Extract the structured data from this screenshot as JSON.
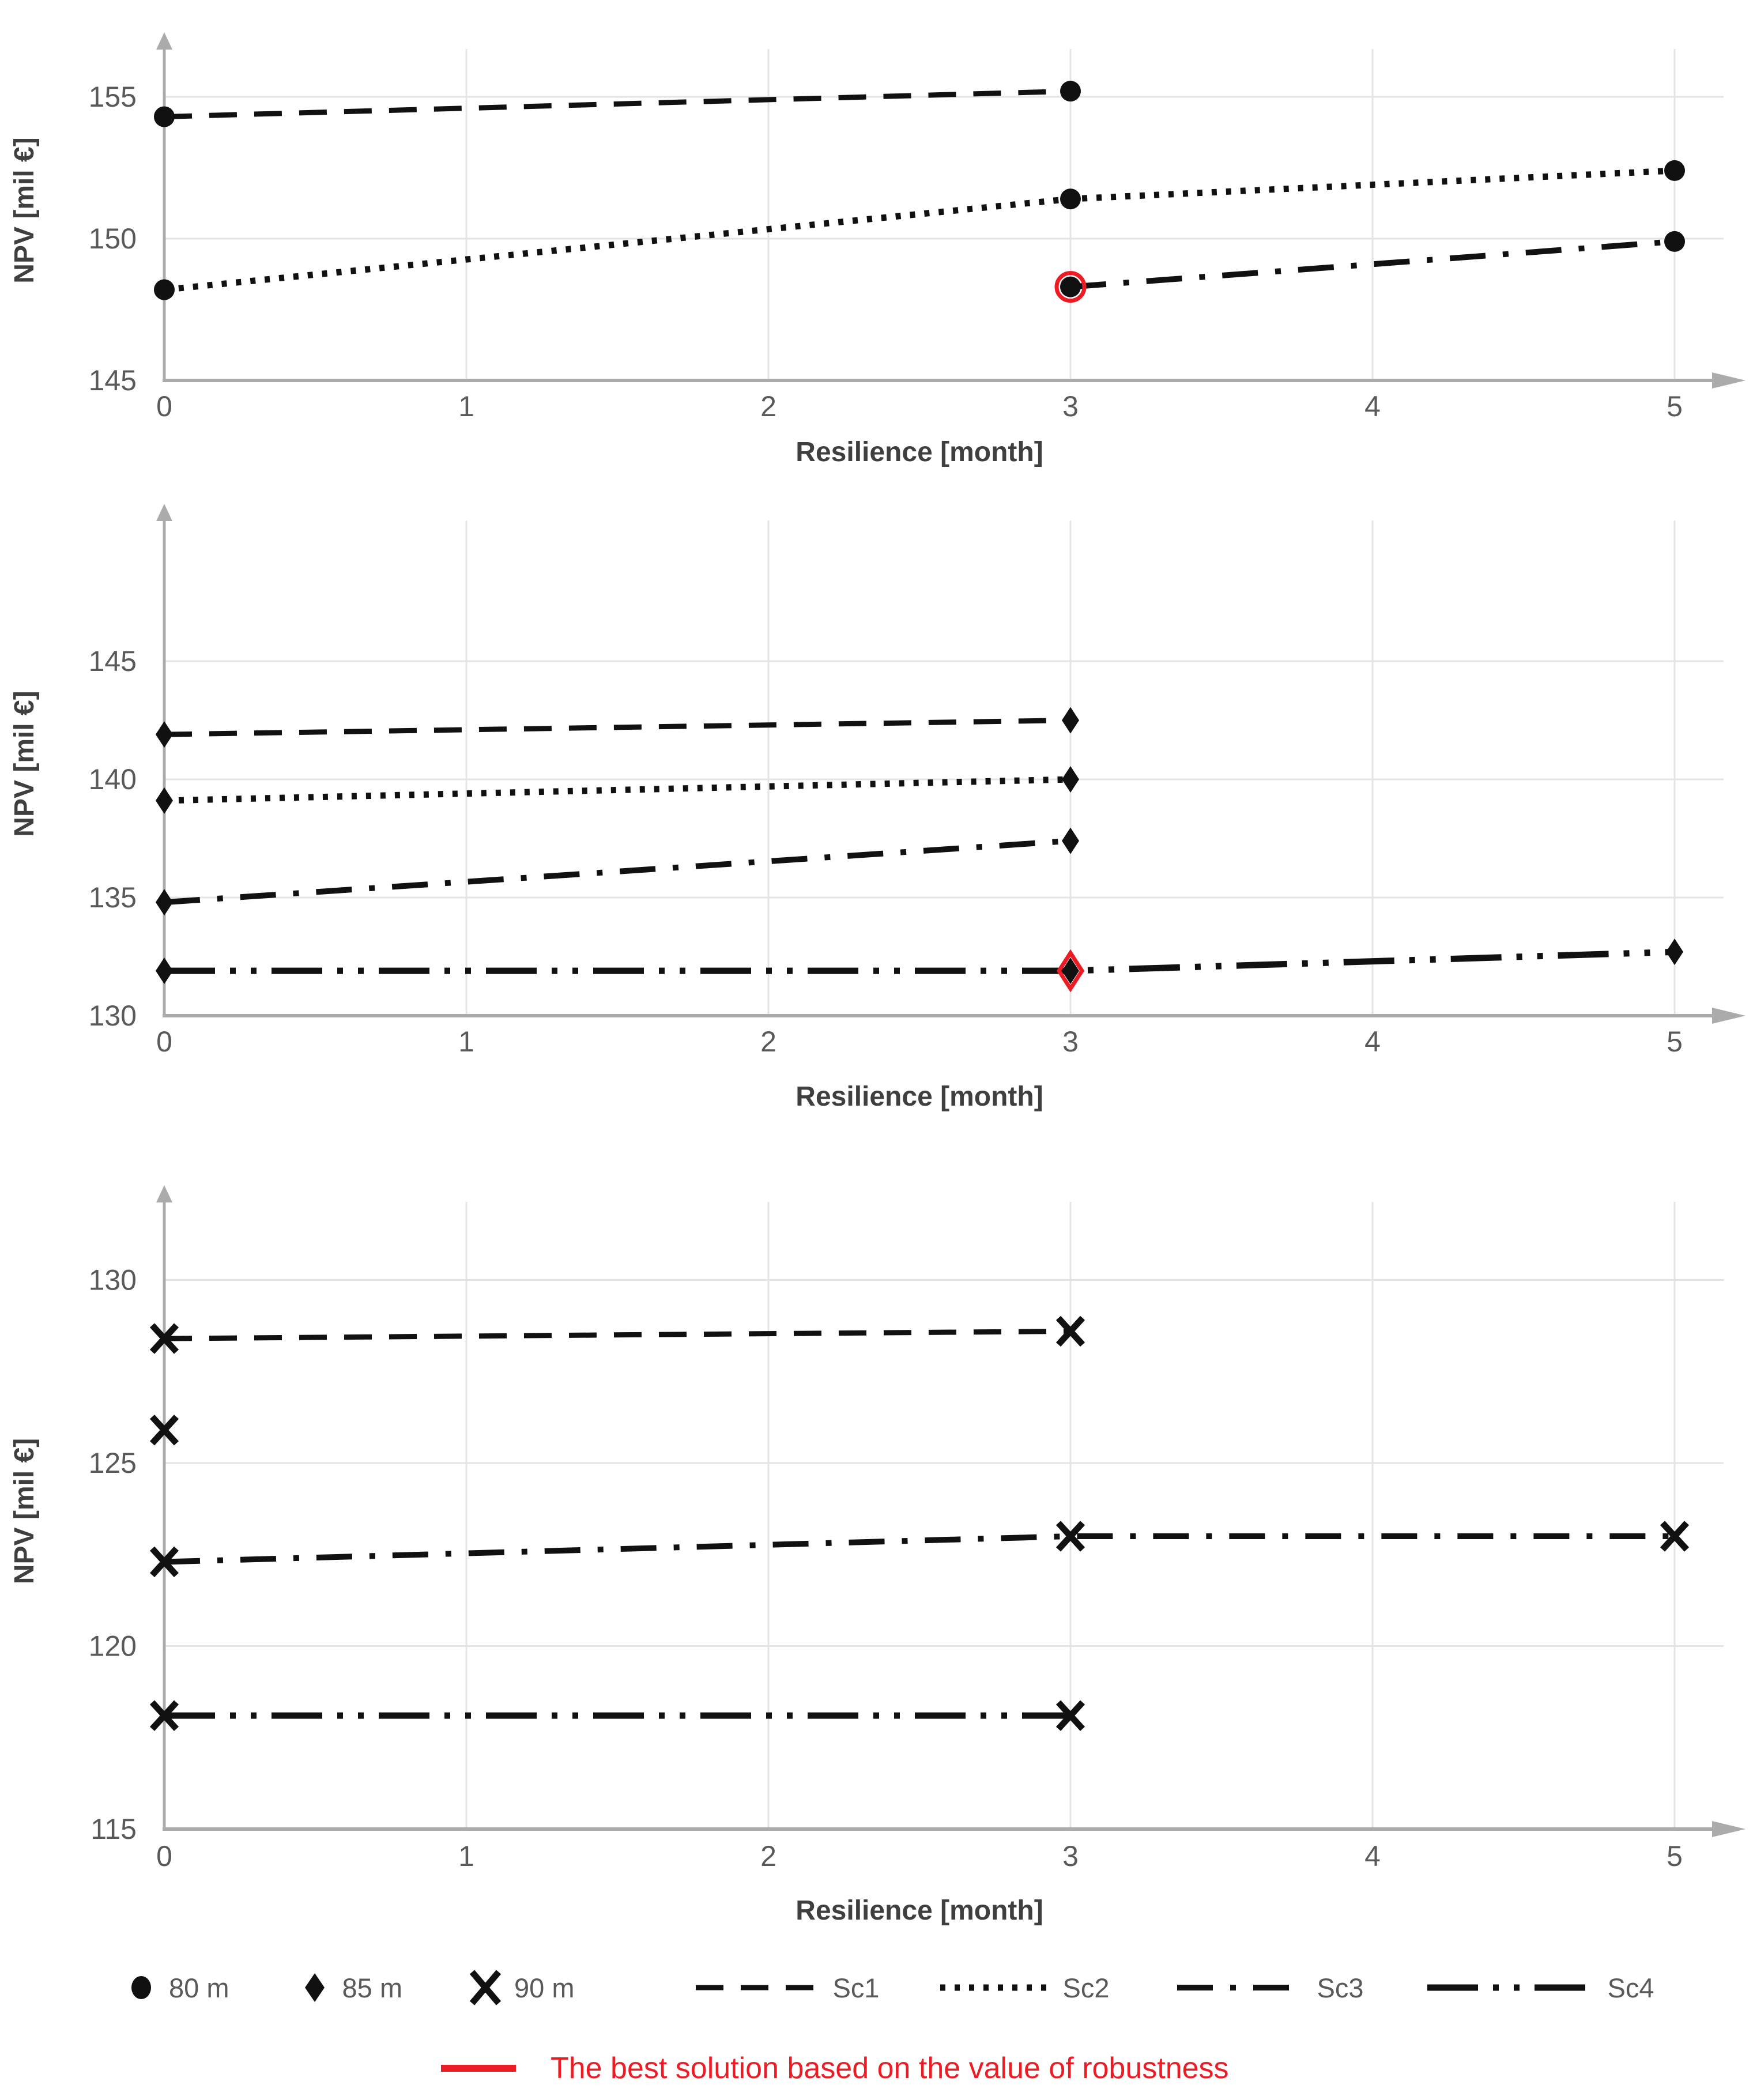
{
  "palette": {
    "line_black": "#111111",
    "accent_red": "#ec1c24",
    "tick_gray": "#595959",
    "title_gray": "#3f3f3f",
    "axis_gray": "#ababab",
    "grid_gray": "#e4e4e4"
  },
  "chart_data": [
    {
      "type": "line",
      "name": "npv-vs-resilience-80m",
      "marker": "circle",
      "marker_label": "80 m",
      "xlabel": "Resilience [month]",
      "ylabel": "NPV [mil €]",
      "xticks": [
        0,
        1,
        2,
        3,
        4,
        5
      ],
      "yticks": [
        145,
        150,
        155
      ],
      "xlim": [
        0,
        5.4
      ],
      "ylim": [
        145,
        157.3
      ],
      "grid": true,
      "series": [
        {
          "name": "Sc1",
          "style": "dash",
          "points": [
            [
              0,
              154.3
            ],
            [
              3,
              155.2
            ]
          ]
        },
        {
          "name": "Sc2",
          "style": "dot",
          "points": [
            [
              0,
              148.2
            ],
            [
              3,
              151.4
            ],
            [
              5,
              152.4
            ]
          ]
        },
        {
          "name": "Sc3",
          "style": "dashdot",
          "points": [
            [
              3,
              148.3
            ],
            [
              5,
              149.9
            ]
          ],
          "highlight_x": 3
        }
      ]
    },
    {
      "type": "line",
      "name": "npv-vs-resilience-85m",
      "marker": "diamond",
      "marker_label": "85 m",
      "xlabel": "Resilience [month]",
      "ylabel": "NPV [mil €]",
      "xticks": [
        0,
        1,
        2,
        3,
        4,
        5
      ],
      "yticks": [
        130,
        135,
        140,
        145
      ],
      "xlim": [
        0,
        5.4
      ],
      "ylim": [
        130,
        147.8
      ],
      "grid": true,
      "series": [
        {
          "name": "Sc1",
          "style": "dash",
          "points": [
            [
              0,
              141.9
            ],
            [
              3,
              142.5
            ]
          ]
        },
        {
          "name": "Sc2",
          "style": "dot",
          "points": [
            [
              0,
              139.1
            ],
            [
              3,
              140.0
            ]
          ]
        },
        {
          "name": "Sc3",
          "style": "dashdot",
          "points": [
            [
              0,
              134.8
            ],
            [
              3,
              137.4
            ]
          ]
        },
        {
          "name": "Sc4",
          "style": "longdashdotdot",
          "points": [
            [
              0,
              131.9
            ],
            [
              3,
              131.9
            ],
            [
              5,
              132.7
            ]
          ],
          "highlight_x": 3
        }
      ]
    },
    {
      "type": "line",
      "name": "npv-vs-resilience-90m",
      "marker": "x",
      "marker_label": "90 m",
      "xlabel": "Resilience [month]",
      "ylabel": "NPV [mil €]",
      "xticks": [
        0,
        1,
        2,
        3,
        4,
        5
      ],
      "yticks": [
        115,
        120,
        125,
        130
      ],
      "xlim": [
        0,
        5.4
      ],
      "ylim": [
        115,
        132.9
      ],
      "grid": true,
      "series": [
        {
          "name": "Sc1",
          "style": "dash",
          "points": [
            [
              0,
              128.4
            ],
            [
              3,
              128.6
            ]
          ]
        },
        {
          "name": "Sc2",
          "style": "none",
          "points": [
            [
              0,
              125.9
            ]
          ]
        },
        {
          "name": "Sc3",
          "style": "dashdot",
          "points": [
            [
              0,
              122.3
            ],
            [
              3,
              123.0
            ],
            [
              5,
              123.0
            ]
          ]
        },
        {
          "name": "Sc4",
          "style": "longdashdotdot",
          "points": [
            [
              0,
              118.1
            ],
            [
              3,
              118.1
            ]
          ]
        }
      ]
    }
  ],
  "legend": {
    "marker_items": [
      {
        "marker": "circle",
        "label": "80 m"
      },
      {
        "marker": "diamond",
        "label": "85 m"
      },
      {
        "marker": "x",
        "label": "90 m"
      }
    ],
    "line_items": [
      {
        "style": "dash",
        "label": "Sc1"
      },
      {
        "style": "dot",
        "label": "Sc2"
      },
      {
        "style": "dashdot",
        "label": "Sc3"
      },
      {
        "style": "longdashdotdot",
        "label": "Sc4"
      }
    ]
  },
  "note": {
    "label": "The best solution based on the value of robustness"
  }
}
